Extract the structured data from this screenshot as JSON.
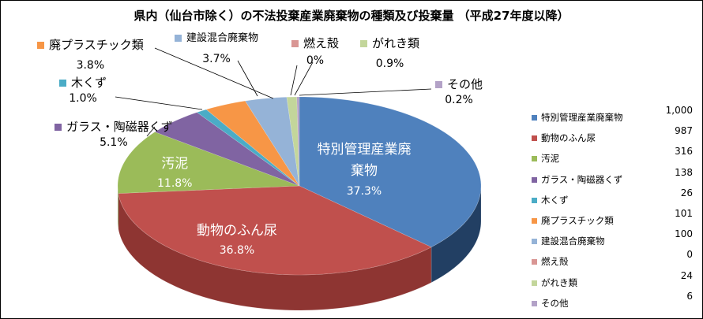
{
  "chart_data": {
    "type": "pie",
    "title": "県内（仙台市除く）の不法投棄産業廃棄物の種類及び投棄量 （平成27年度以降）",
    "categories": [
      "特別管理産業廃棄物",
      "動物のふん尿",
      "汚泥",
      "ガラス・陶磁器くず",
      "木くず",
      "廃プラスチック類",
      "建設混合廃棄物",
      "燃え殻",
      "がれき類",
      "その他"
    ],
    "values": [
      1000,
      987,
      316,
      138,
      26,
      101,
      100,
      0,
      24,
      6
    ],
    "value_labels": [
      "1,000",
      "987",
      "316",
      "138",
      "26",
      "101",
      "100",
      "0",
      "24",
      "6"
    ],
    "percent_labels": [
      "37.3%",
      "36.8%",
      "11.8%",
      "5.1%",
      "1.0%",
      "3.8%",
      "3.7%",
      "0%",
      "0.9%",
      "0.2%"
    ],
    "colors": [
      "#4f81bd",
      "#c0504d",
      "#9bbb59",
      "#8064a2",
      "#4bacc6",
      "#f79646",
      "#95b3d7",
      "#d99694",
      "#c3d69b",
      "#b3a2c7"
    ],
    "side_colors": [
      "#223f63",
      "#8e3532",
      "#6f8a3c",
      "#5a4578",
      "#2f7f96",
      "#b86a2a",
      "#6d89ad",
      "#a86b69",
      "#93a86e",
      "#8472a0"
    ],
    "legend": "right"
  }
}
